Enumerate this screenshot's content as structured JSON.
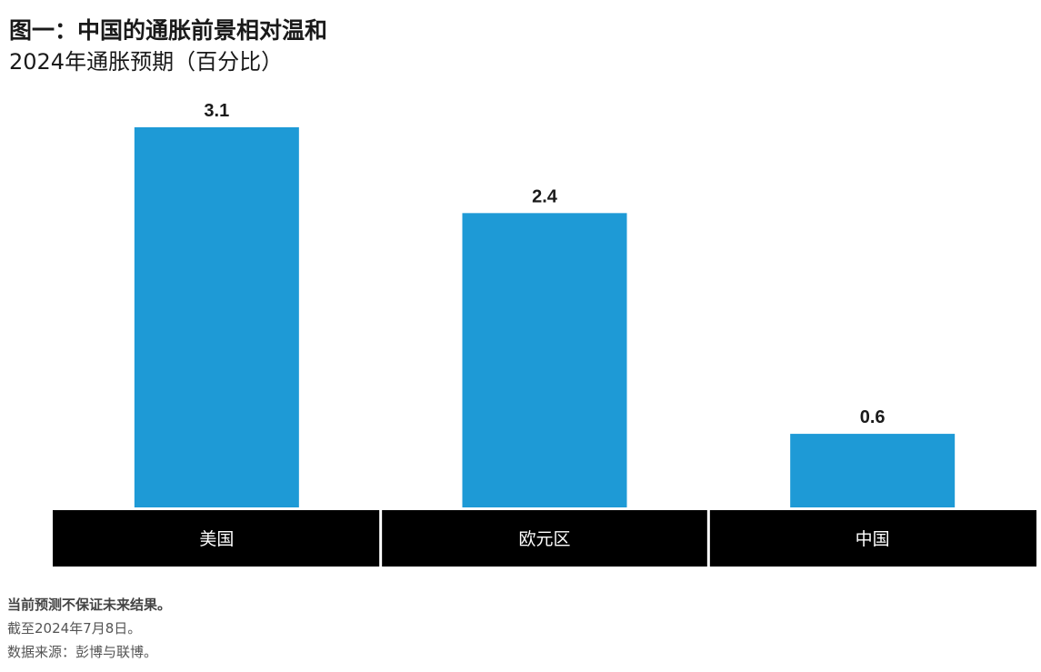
{
  "title": "图一：中国的通胀前景相对温和",
  "subtitle": "2024年通胀预期（百分比）",
  "chart_data": {
    "type": "bar",
    "categories": [
      "美国",
      "欧元区",
      "中国"
    ],
    "values": [
      3.1,
      2.4,
      0.6
    ],
    "value_labels": [
      "3.1",
      "2.4",
      "0.6"
    ],
    "ylim": [
      0,
      3.5
    ],
    "grid": false,
    "bar_color": "#1e9ad6",
    "category_band_color": "#000000"
  },
  "notes": {
    "disclaimer": "当前预测不保证未来结果。",
    "as_of": "截至2024年7月8日。",
    "source": "数据来源：彭博与联博。"
  }
}
